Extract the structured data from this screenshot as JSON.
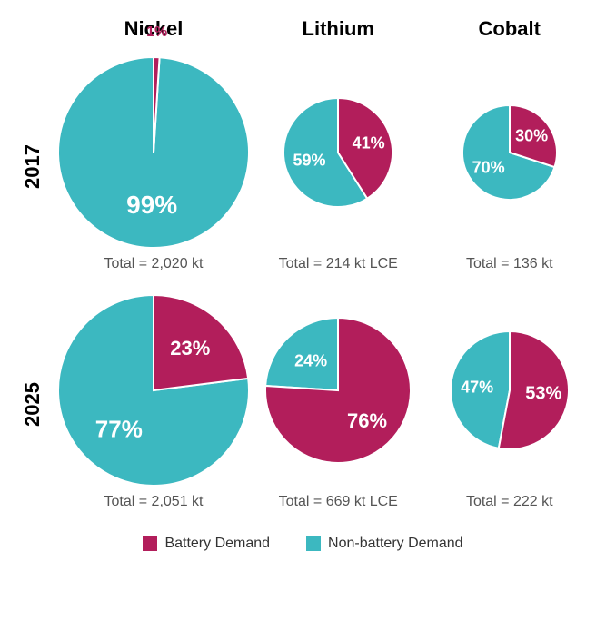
{
  "colors": {
    "battery": "#b21e5b",
    "nonbattery": "#3cb8c0",
    "slice_stroke": "#ffffff",
    "text_dark": "#000000",
    "text_muted": "#555555",
    "background": "#ffffff"
  },
  "legend": {
    "battery_label": "Battery Demand",
    "nonbattery_label": "Non-battery Demand"
  },
  "columns": [
    {
      "key": "nickel",
      "label": "Nickel"
    },
    {
      "key": "lithium",
      "label": "Lithium"
    },
    {
      "key": "cobalt",
      "label": "Cobalt"
    }
  ],
  "rows": [
    {
      "key": "y2017",
      "label": "2017"
    },
    {
      "key": "y2025",
      "label": "2025"
    }
  ],
  "pies": {
    "y2017": {
      "nickel": {
        "type": "pie",
        "diameter": 210,
        "battery_pct": 1,
        "nonbattery_pct": 99,
        "battery_label": "1%",
        "nonbattery_label": "99%",
        "total": "Total = 2,020 kt",
        "label_fontsize_non": 28,
        "label_fontsize_bat": 16,
        "battery_label_outside": true
      },
      "lithium": {
        "type": "pie",
        "diameter": 120,
        "battery_pct": 41,
        "nonbattery_pct": 59,
        "battery_label": "41%",
        "nonbattery_label": "59%",
        "total": "Total = 214 kt LCE",
        "label_fontsize_non": 18,
        "label_fontsize_bat": 18,
        "battery_label_outside": false
      },
      "cobalt": {
        "type": "pie",
        "diameter": 104,
        "battery_pct": 30,
        "nonbattery_pct": 70,
        "battery_label": "30%",
        "nonbattery_label": "70%",
        "total": "Total = 136 kt",
        "label_fontsize_non": 18,
        "label_fontsize_bat": 18,
        "battery_label_outside": false
      }
    },
    "y2025": {
      "nickel": {
        "type": "pie",
        "diameter": 210,
        "battery_pct": 23,
        "nonbattery_pct": 77,
        "battery_label": "23%",
        "nonbattery_label": "77%",
        "total": "Total = 2,051 kt",
        "label_fontsize_non": 26,
        "label_fontsize_bat": 22,
        "battery_label_outside": false
      },
      "lithium": {
        "type": "pie",
        "diameter": 160,
        "battery_pct": 76,
        "nonbattery_pct": 24,
        "battery_label": "76%",
        "nonbattery_label": "24%",
        "total": "Total = 669 kt LCE",
        "label_fontsize_non": 18,
        "label_fontsize_bat": 22,
        "battery_label_outside": false
      },
      "cobalt": {
        "type": "pie",
        "diameter": 130,
        "battery_pct": 53,
        "nonbattery_pct": 47,
        "battery_label": "53%",
        "nonbattery_label": "47%",
        "total": "Total = 222 kt",
        "label_fontsize_non": 18,
        "label_fontsize_bat": 20,
        "battery_label_outside": false
      }
    }
  }
}
